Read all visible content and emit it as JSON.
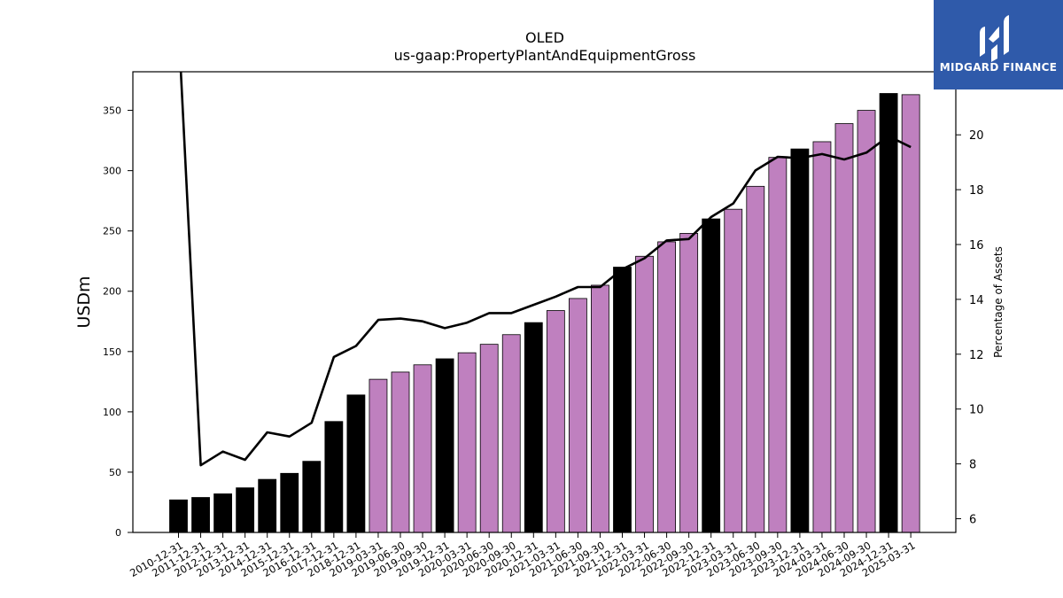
{
  "logo": {
    "text": "MIDGARD FINANCE",
    "icon": "midgard-m-logo-icon",
    "background": "#2f5aaa"
  },
  "chart_data": {
    "type": "bar",
    "title": "OLED",
    "subtitle": "us-gaap:PropertyPlantAndEquipmentGross",
    "ylabel": "USDm",
    "y2label": "Percentage of Assets",
    "ylim": [
      0,
      382
    ],
    "y2lim": [
      5.5,
      22.3
    ],
    "yticks": [
      0,
      50,
      100,
      150,
      200,
      250,
      300,
      350
    ],
    "y2ticks": [
      6,
      8,
      10,
      12,
      14,
      16,
      18,
      20
    ],
    "grid": false,
    "categories": [
      "2010-12-31",
      "2011-12-31",
      "2012-12-31",
      "2013-12-31",
      "2014-12-31",
      "2015-12-31",
      "2016-12-31",
      "2017-12-31",
      "2018-12-31",
      "2019-03-31",
      "2019-06-30",
      "2019-09-30",
      "2019-12-31",
      "2020-03-31",
      "2020-06-30",
      "2020-09-30",
      "2020-12-31",
      "2021-03-31",
      "2021-06-30",
      "2021-09-30",
      "2021-12-31",
      "2022-03-31",
      "2022-06-30",
      "2022-09-30",
      "2022-12-31",
      "2023-03-31",
      "2023-06-30",
      "2023-09-30",
      "2023-12-31",
      "2024-03-31",
      "2024-06-30",
      "2024-09-30",
      "2024-12-31",
      "2025-03-31"
    ],
    "series": [
      {
        "kind": "bar",
        "values": [
          27,
          29,
          32,
          37,
          44,
          49,
          59,
          92,
          114,
          127,
          133,
          139,
          144,
          149,
          156,
          164,
          174,
          184,
          194,
          205,
          220,
          229,
          241,
          248,
          260,
          268,
          287,
          311,
          318,
          324,
          339,
          350,
          364,
          363
        ],
        "period": [
          "FY",
          "FY",
          "FY",
          "FY",
          "FY",
          "FY",
          "FY",
          "FY",
          "FY",
          "Q",
          "Q",
          "Q",
          "FY",
          "Q",
          "Q",
          "Q",
          "FY",
          "Q",
          "Q",
          "Q",
          "FY",
          "Q",
          "Q",
          "Q",
          "FY",
          "Q",
          "Q",
          "Q",
          "FY",
          "Q",
          "Q",
          "Q",
          "FY",
          "Q"
        ]
      },
      {
        "kind": "line",
        "axis": "right",
        "values": [
          24.0,
          7.95,
          8.45,
          8.15,
          9.15,
          9.0,
          9.5,
          11.9,
          12.3,
          13.25,
          13.3,
          13.2,
          12.95,
          13.15,
          13.5,
          13.5,
          13.8,
          14.1,
          14.45,
          14.45,
          15.1,
          15.5,
          16.15,
          16.2,
          17.0,
          17.5,
          18.7,
          19.2,
          19.15,
          19.3,
          19.1,
          19.35,
          19.95,
          19.55
        ]
      }
    ],
    "colors": {
      "annual_bar": "#000000",
      "quarter_bar": "#bf80bf",
      "bar_edge": "#000000",
      "line": "#000000"
    }
  }
}
